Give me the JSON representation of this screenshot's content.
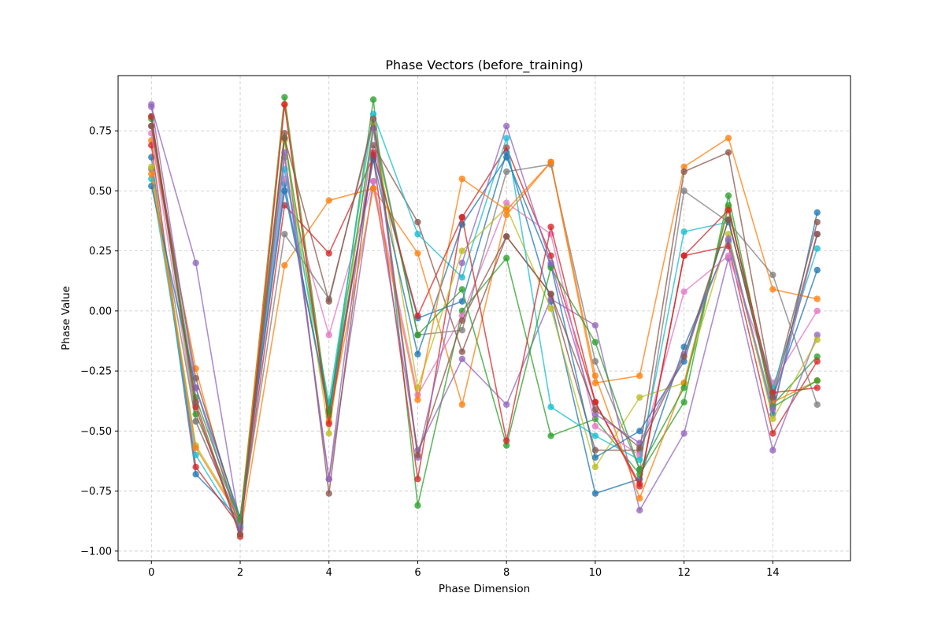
{
  "chart_data": {
    "type": "line",
    "title": "Phase Vectors (before_training)",
    "xlabel": "Phase Dimension",
    "ylabel": "Phase Value",
    "xlim": [
      -0.75,
      15.75
    ],
    "ylim": [
      -1.04,
      0.98
    ],
    "xticks": [
      0,
      2,
      4,
      6,
      8,
      10,
      12,
      14
    ],
    "yticks": [
      -1.0,
      -0.75,
      -0.5,
      -0.25,
      0.0,
      0.25,
      0.5,
      0.75
    ],
    "ytick_labels": [
      "−1.00",
      "−0.75",
      "−0.50",
      "−0.25",
      "0.00",
      "0.25",
      "0.50",
      "0.75"
    ],
    "grid": true,
    "grid_style": "dashed",
    "x": [
      0,
      1,
      2,
      3,
      4,
      5,
      6,
      7,
      8,
      9,
      10,
      11,
      12,
      13,
      14,
      15
    ],
    "series": [
      {
        "color": "#1f77b4",
        "values": [
          0.64,
          -0.68,
          -0.87,
          0.53,
          -0.44,
          0.65,
          -0.03,
          0.04,
          0.66,
          0.04,
          -0.76,
          -0.7,
          -0.15,
          0.29,
          -0.43,
          0.41
        ]
      },
      {
        "color": "#ff7f0e",
        "values": [
          0.71,
          -0.24,
          -0.93,
          0.19,
          0.46,
          0.51,
          0.24,
          -0.39,
          0.4,
          0.62,
          -0.3,
          -0.27,
          0.6,
          0.72,
          0.09,
          0.05
        ]
      },
      {
        "color": "#2ca02c",
        "values": [
          0.81,
          -0.36,
          -0.88,
          0.89,
          -0.43,
          0.88,
          -0.81,
          0.0,
          0.22,
          -0.52,
          -0.45,
          -0.68,
          -0.38,
          0.48,
          -0.39,
          -0.19
        ]
      },
      {
        "color": "#d62728",
        "values": [
          0.69,
          -0.65,
          -0.9,
          0.44,
          0.24,
          0.64,
          -0.7,
          0.39,
          0.68,
          0.23,
          -0.38,
          -0.72,
          0.23,
          0.27,
          -0.51,
          -0.21
        ]
      },
      {
        "color": "#9467bd",
        "values": [
          0.85,
          0.2,
          -0.9,
          0.64,
          -0.7,
          0.54,
          -0.58,
          -0.2,
          -0.39,
          0.05,
          -0.06,
          -0.83,
          -0.51,
          0.22,
          -0.58,
          -0.1
        ]
      },
      {
        "color": "#8c564b",
        "values": [
          0.77,
          -0.28,
          -0.88,
          0.74,
          -0.76,
          0.69,
          0.37,
          -0.17,
          0.31,
          0.07,
          -0.58,
          -0.58,
          0.58,
          0.66,
          -0.34,
          0.37
        ]
      },
      {
        "color": "#e377c2",
        "values": [
          0.74,
          -0.46,
          -0.89,
          0.55,
          -0.1,
          0.54,
          -0.35,
          -0.02,
          0.45,
          0.32,
          -0.48,
          -0.6,
          0.08,
          0.23,
          -0.3,
          0.0
        ]
      },
      {
        "color": "#7f7f7f",
        "values": [
          0.59,
          -0.46,
          -0.89,
          0.32,
          0.05,
          0.78,
          -0.1,
          -0.08,
          0.58,
          0.61,
          -0.21,
          -0.66,
          0.5,
          0.37,
          0.15,
          -0.39
        ]
      },
      {
        "color": "#bcbd22",
        "values": [
          0.6,
          -0.56,
          -0.86,
          0.71,
          -0.51,
          0.78,
          -0.32,
          0.25,
          0.43,
          0.01,
          -0.65,
          -0.36,
          -0.3,
          0.32,
          -0.45,
          -0.12
        ]
      },
      {
        "color": "#17becf",
        "values": [
          0.55,
          -0.6,
          -0.9,
          0.59,
          -0.38,
          0.82,
          0.32,
          0.14,
          0.72,
          -0.4,
          -0.52,
          -0.62,
          0.33,
          0.37,
          -0.32,
          0.26
        ]
      },
      {
        "color": "#1f77b4",
        "values": [
          0.52,
          -0.32,
          -0.86,
          0.5,
          -0.41,
          0.63,
          -0.18,
          0.36,
          0.64,
          0.19,
          -0.61,
          -0.5,
          -0.21,
          0.38,
          -0.36,
          0.17
        ]
      },
      {
        "color": "#ff7f0e",
        "values": [
          0.57,
          -0.57,
          -0.87,
          0.86,
          -0.46,
          0.51,
          -0.37,
          0.55,
          0.42,
          0.62,
          -0.27,
          -0.78,
          -0.3,
          0.43,
          -0.38,
          -0.29
        ]
      },
      {
        "color": "#2ca02c",
        "values": [
          0.8,
          -0.43,
          -0.87,
          0.72,
          -0.42,
          0.76,
          -0.1,
          0.09,
          -0.56,
          0.18,
          -0.13,
          -0.66,
          -0.32,
          0.44,
          -0.4,
          -0.29
        ]
      },
      {
        "color": "#d62728",
        "values": [
          0.81,
          -0.4,
          -0.94,
          0.86,
          -0.47,
          0.66,
          -0.02,
          0.39,
          -0.54,
          0.35,
          -0.38,
          -0.73,
          0.23,
          0.42,
          -0.34,
          -0.32
        ]
      },
      {
        "color": "#9467bd",
        "values": [
          0.86,
          -0.32,
          -0.91,
          0.66,
          -0.7,
          0.76,
          -0.61,
          0.2,
          0.77,
          0.2,
          -0.43,
          -0.55,
          -0.18,
          0.3,
          -0.41,
          0.32
        ]
      },
      {
        "color": "#8c564b",
        "values": [
          0.77,
          -0.38,
          -0.93,
          0.72,
          0.04,
          0.8,
          -0.6,
          -0.04,
          0.31,
          0.07,
          -0.41,
          -0.57,
          -0.19,
          0.38,
          -0.36,
          0.32
        ]
      }
    ]
  }
}
